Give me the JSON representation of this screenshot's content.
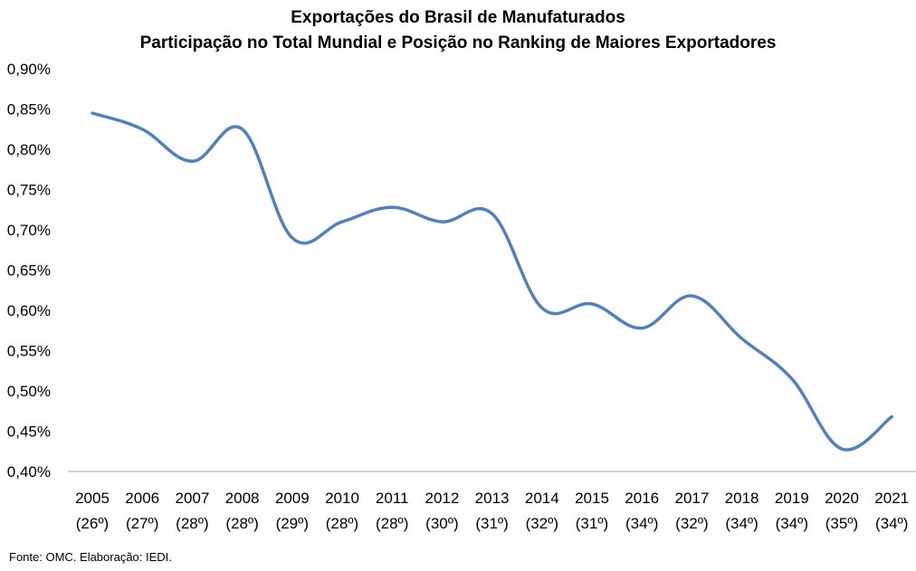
{
  "chart_data": {
    "type": "line",
    "title": "Exportações do Brasil de Manufaturados",
    "subtitle": "Participação no Total Mundial e Posição no Ranking de Maiores Exportadores",
    "categories": [
      "2005",
      "2006",
      "2007",
      "2008",
      "2009",
      "2010",
      "2011",
      "2012",
      "2013",
      "2014",
      "2015",
      "2016",
      "2017",
      "2018",
      "2019",
      "2020",
      "2021"
    ],
    "rankings": [
      "(26º)",
      "(27º)",
      "(28º)",
      "(28º)",
      "(29º)",
      "(28º)",
      "(28º)",
      "(30º)",
      "(31º)",
      "(32º)",
      "(31º)",
      "(34º)",
      "(32º)",
      "(34º)",
      "(34º)",
      "(35º)",
      "(34º)"
    ],
    "series": [
      {
        "values": [
          0.845,
          0.825,
          0.785,
          0.825,
          0.69,
          0.71,
          0.728,
          0.71,
          0.72,
          0.603,
          0.608,
          0.578,
          0.618,
          0.565,
          0.515,
          0.428,
          0.468
        ]
      }
    ],
    "ylim": [
      0.4,
      0.9
    ],
    "yticks": [
      "0,40%",
      "0,45%",
      "0,50%",
      "0,55%",
      "0,60%",
      "0,65%",
      "0,70%",
      "0,75%",
      "0,80%",
      "0,85%",
      "0,90%"
    ],
    "line_color": "#4F81BD",
    "grid": false,
    "legend": "none"
  },
  "source_note": "Fonte: OMC. Elaboração: IEDI."
}
